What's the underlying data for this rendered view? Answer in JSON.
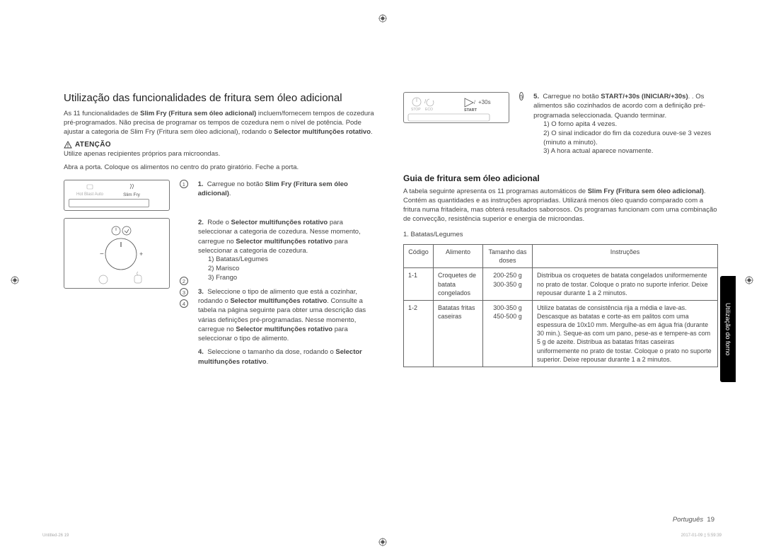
{
  "left": {
    "title": "Utilização das funcionalidades de fritura sem óleo adicional",
    "intro1": "As 11 funcionalidades de ",
    "intro_bold": "Slim Fry (Fritura sem óleo adicional)",
    "intro2": " incluem/fornecem tempos de cozedura pré-programados. Não precisa de programar os tempos de cozedura nem o nível de potência. Pode ajustar a categoria de Slim Fry (Fritura sem óleo adicional), rodando o ",
    "intro_bold2": "Selector multifunções rotativo",
    "intro3": ".",
    "warn_label": "ATENÇÃO",
    "warn_text": "Utilize apenas recipientes próprios para microondas.",
    "open_door": "Abra a porta. Coloque os alimentos no centro do prato giratório. Feche a porta.",
    "display1_a": "Hot Blast Auto",
    "display1_b": "Slim Fry",
    "step1_num": "1.",
    "step1_a": "Carregue no botão ",
    "step1_b": "Slim Fry (Fritura sem óleo adicional)",
    "step1_c": ".",
    "step2_num": "2.",
    "step2_a": "Rode o ",
    "step2_b": "Selector multifunções rotativo",
    "step2_c": " para seleccionar a categoria de cozedura. Nesse momento, carregue no ",
    "step2_d": "Selector multifunções rotativo",
    "step2_e": " para seleccionar a categoria de cozedura.",
    "step2_list1": "1)  Batatas/Legumes",
    "step2_list2": "2)  Marisco",
    "step2_list3": "3)  Frango",
    "step3_num": "3.",
    "step3_a": "Seleccione o tipo de alimento que está a cozinhar, rodando o ",
    "step3_b": "Selector multifunções rotativo",
    "step3_c": ". Consulte a tabela na página seguinte para obter uma descrição das várias definições pré-programadas. Nesse momento, carregue no ",
    "step3_d": "Selector multifunções rotativo",
    "step3_e": " para seleccionar o tipo de alimento.",
    "step4_num": "4.",
    "step4_a": "Seleccione o tamanho da dose, rodando o ",
    "step4_b": "Selector multifunções rotativo",
    "step4_c": "."
  },
  "right": {
    "panel_stop": "STOP",
    "panel_eco": "ECO",
    "panel_start": "START",
    "panel_30s": "+30s",
    "step5_num": "5.",
    "step5_a": "Carregue no botão ",
    "step5_b": "START/+30s (INICIAR/+30s)",
    "step5_c": ". Os alimentos são cozinhados de acordo com a definição pré-programada seleccionada. Quando terminar.",
    "step5_list1": "1)  O forno apita 4 vezes.",
    "step5_list2": "2)  O sinal indicador do fim da cozedura ouve-se 3 vezes (minuto a minuto).",
    "step5_list3": "3)  A hora actual aparece novamente.",
    "guide_title": "Guia de fritura sem óleo adicional",
    "guide_p1a": "A tabela seguinte apresenta os 11 programas automáticos de ",
    "guide_p1b": "Slim Fry (Fritura sem óleo adicional)",
    "guide_p1c": ". Contém as quantidades e as instruções apropriadas. Utilizará menos óleo quando comparado com a fritura numa fritadeira, mas obterá resultados saborosos. Os programas funcionam com uma combinação de convecção, resistência superior e energia de microondas.",
    "cat1": "1. Batatas/Legumes",
    "th1": "Código",
    "th2": "Alimento",
    "th3": "Tamanho das doses",
    "th4": "Instruções",
    "rows": [
      {
        "code": "1-1",
        "food": "Croquetes de batata congelados",
        "dose": "200-250 g\n300-350 g",
        "instr": "Distribua os croquetes de batata congelados uniformemente no prato de tostar. Coloque o prato no suporte inferior. Deixe repousar durante 1 a 2 minutos."
      },
      {
        "code": "1-2",
        "food": "Batatas fritas caseiras",
        "dose": "300-350 g\n450-500 g",
        "instr": "Utilize batatas de consistência rija a média e lave-as. Descasque as batatas e corte-as em palitos com uma espessura de 10x10 mm. Mergulhe-as em água fria (durante 30 min.). Seque-as com um pano, pese-as e tempere-as com 5 g de azeite. Distribua as batatas fritas caseiras uniformemente no prato de tostar. Coloque o prato no suporte superior. Deixe repousar durante 1 a 2 minutos."
      }
    ]
  },
  "side_tab": "Utilização do forno",
  "footer_lang": "Português",
  "footer_page": "19",
  "tiny_l": "Untitled-26   19",
  "tiny_r": "2017-01-09   ▯ 5:59:39"
}
